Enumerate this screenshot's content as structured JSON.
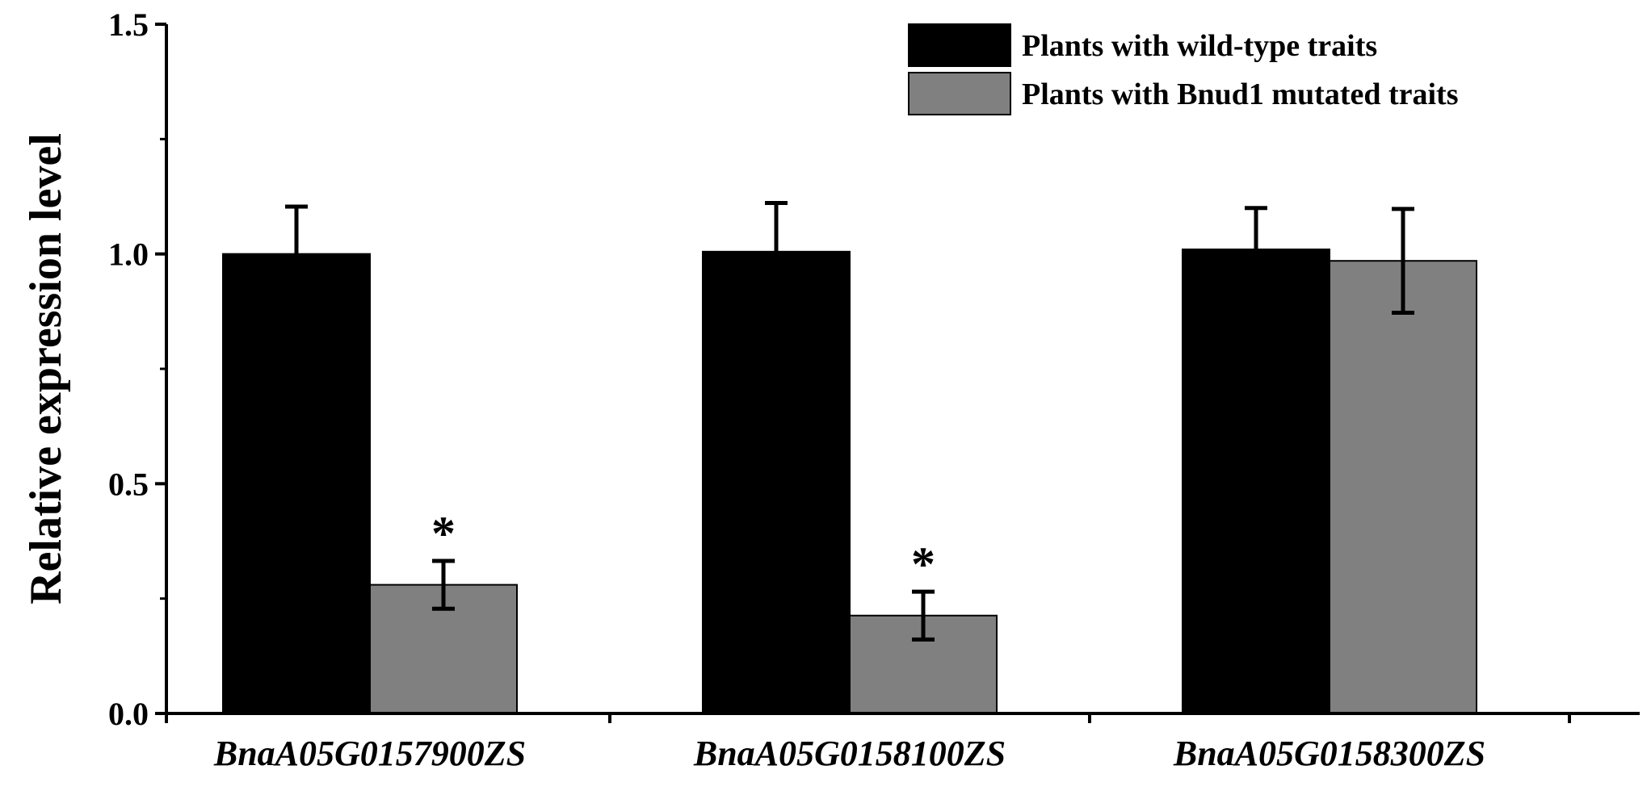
{
  "chart_data": {
    "type": "bar",
    "title": "",
    "xlabel": "",
    "ylabel": "Relative expression level",
    "ylim": [
      0,
      1.5
    ],
    "yticks": [
      "0.0",
      "0.5",
      "1.0",
      "1.5"
    ],
    "categories": [
      "BnaA05G0157900ZS",
      "BnaA05G0158100ZS",
      "BnaA05G0158300ZS"
    ],
    "series": [
      {
        "name": "Plants with wild-type traits",
        "color": "#000000",
        "values": [
          1.0,
          1.005,
          1.01
        ],
        "errors": [
          0.103,
          0.106,
          0.09
        ]
      },
      {
        "name": "Plants with Bnud1 mutated traits",
        "color": "#808080",
        "values": [
          0.28,
          0.213,
          0.985
        ],
        "errors": [
          0.052,
          0.052,
          0.113
        ]
      }
    ],
    "significance": [
      {
        "category": 0,
        "series": 1,
        "mark": "*"
      },
      {
        "category": 1,
        "series": 1,
        "mark": "*"
      }
    ],
    "legend_position": "top-right",
    "grid": false
  }
}
